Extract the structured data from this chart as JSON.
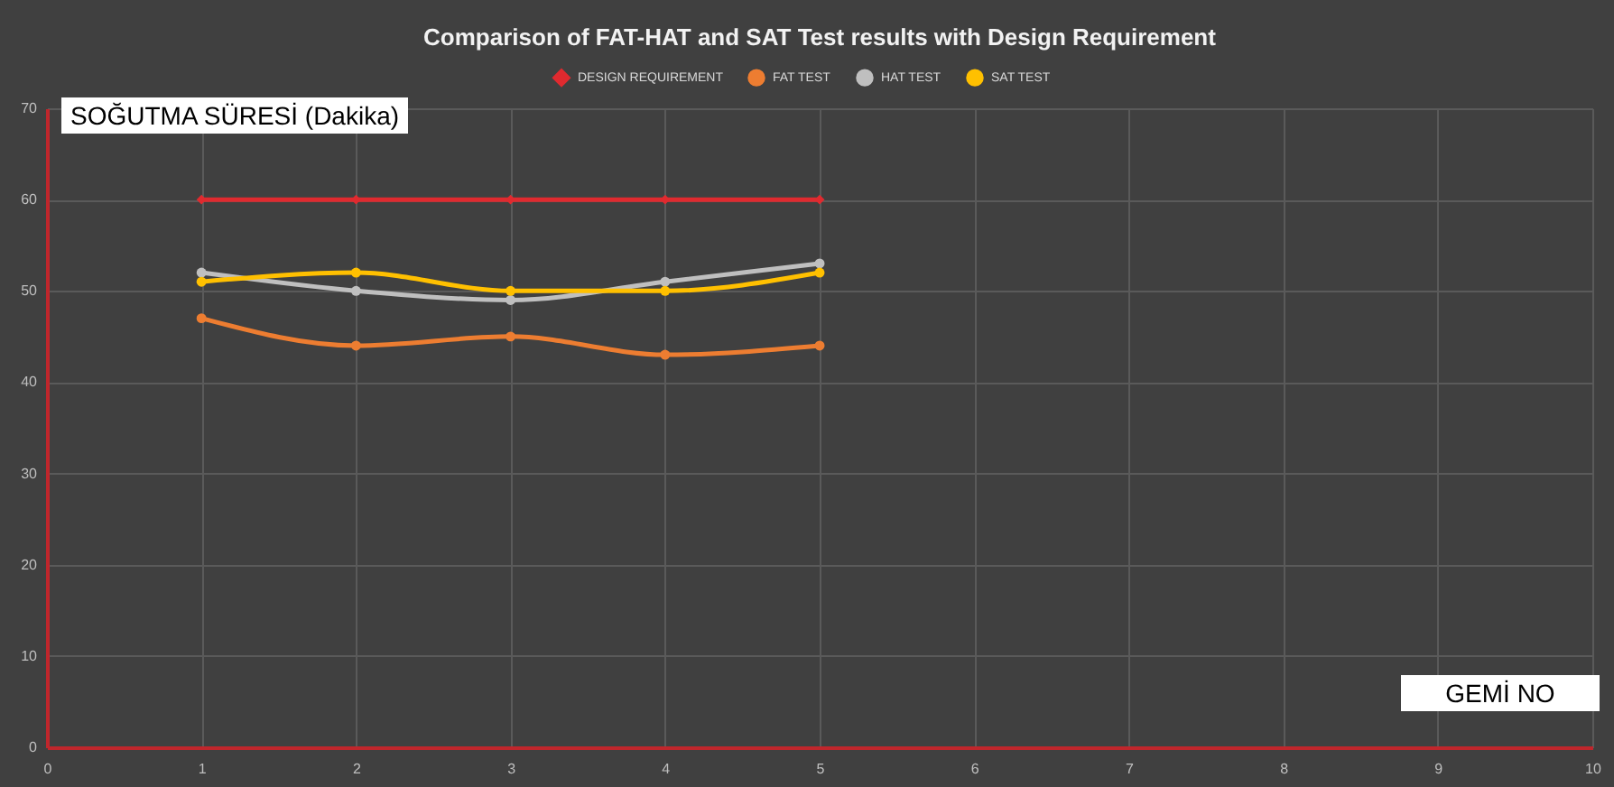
{
  "chart_data": {
    "type": "line",
    "title": "Comparison of FAT-HAT  and SAT Test results with Design Requirement",
    "xlabel": "GEMİ NO",
    "ylabel": "SOĞUTMA SÜRESİ (Dakika)",
    "x": [
      1,
      2,
      3,
      4,
      5
    ],
    "series": [
      {
        "name": "DESIGN REQUIREMENT",
        "color": "#e02a2f",
        "marker": "diamond",
        "values": [
          60,
          60,
          60,
          60,
          60
        ]
      },
      {
        "name": "FAT TEST",
        "color": "#ed7d31",
        "marker": "circle",
        "values": [
          47,
          44,
          45,
          43,
          44
        ]
      },
      {
        "name": "HAT TEST",
        "color": "#bfbfbf",
        "marker": "circle",
        "values": [
          52,
          50,
          49,
          51,
          53
        ]
      },
      {
        "name": "SAT TEST",
        "color": "#ffc000",
        "marker": "circle",
        "values": [
          51,
          52,
          50,
          50,
          52
        ]
      }
    ],
    "xlim": [
      0,
      10
    ],
    "xticks": [
      0,
      1,
      2,
      3,
      4,
      5,
      6,
      7,
      8,
      9,
      10
    ],
    "ylim": [
      0,
      70
    ],
    "yticks": [
      0,
      10,
      20,
      30,
      40,
      50,
      60,
      70
    ],
    "grid": true,
    "legend": "top",
    "line_style": "solid"
  }
}
